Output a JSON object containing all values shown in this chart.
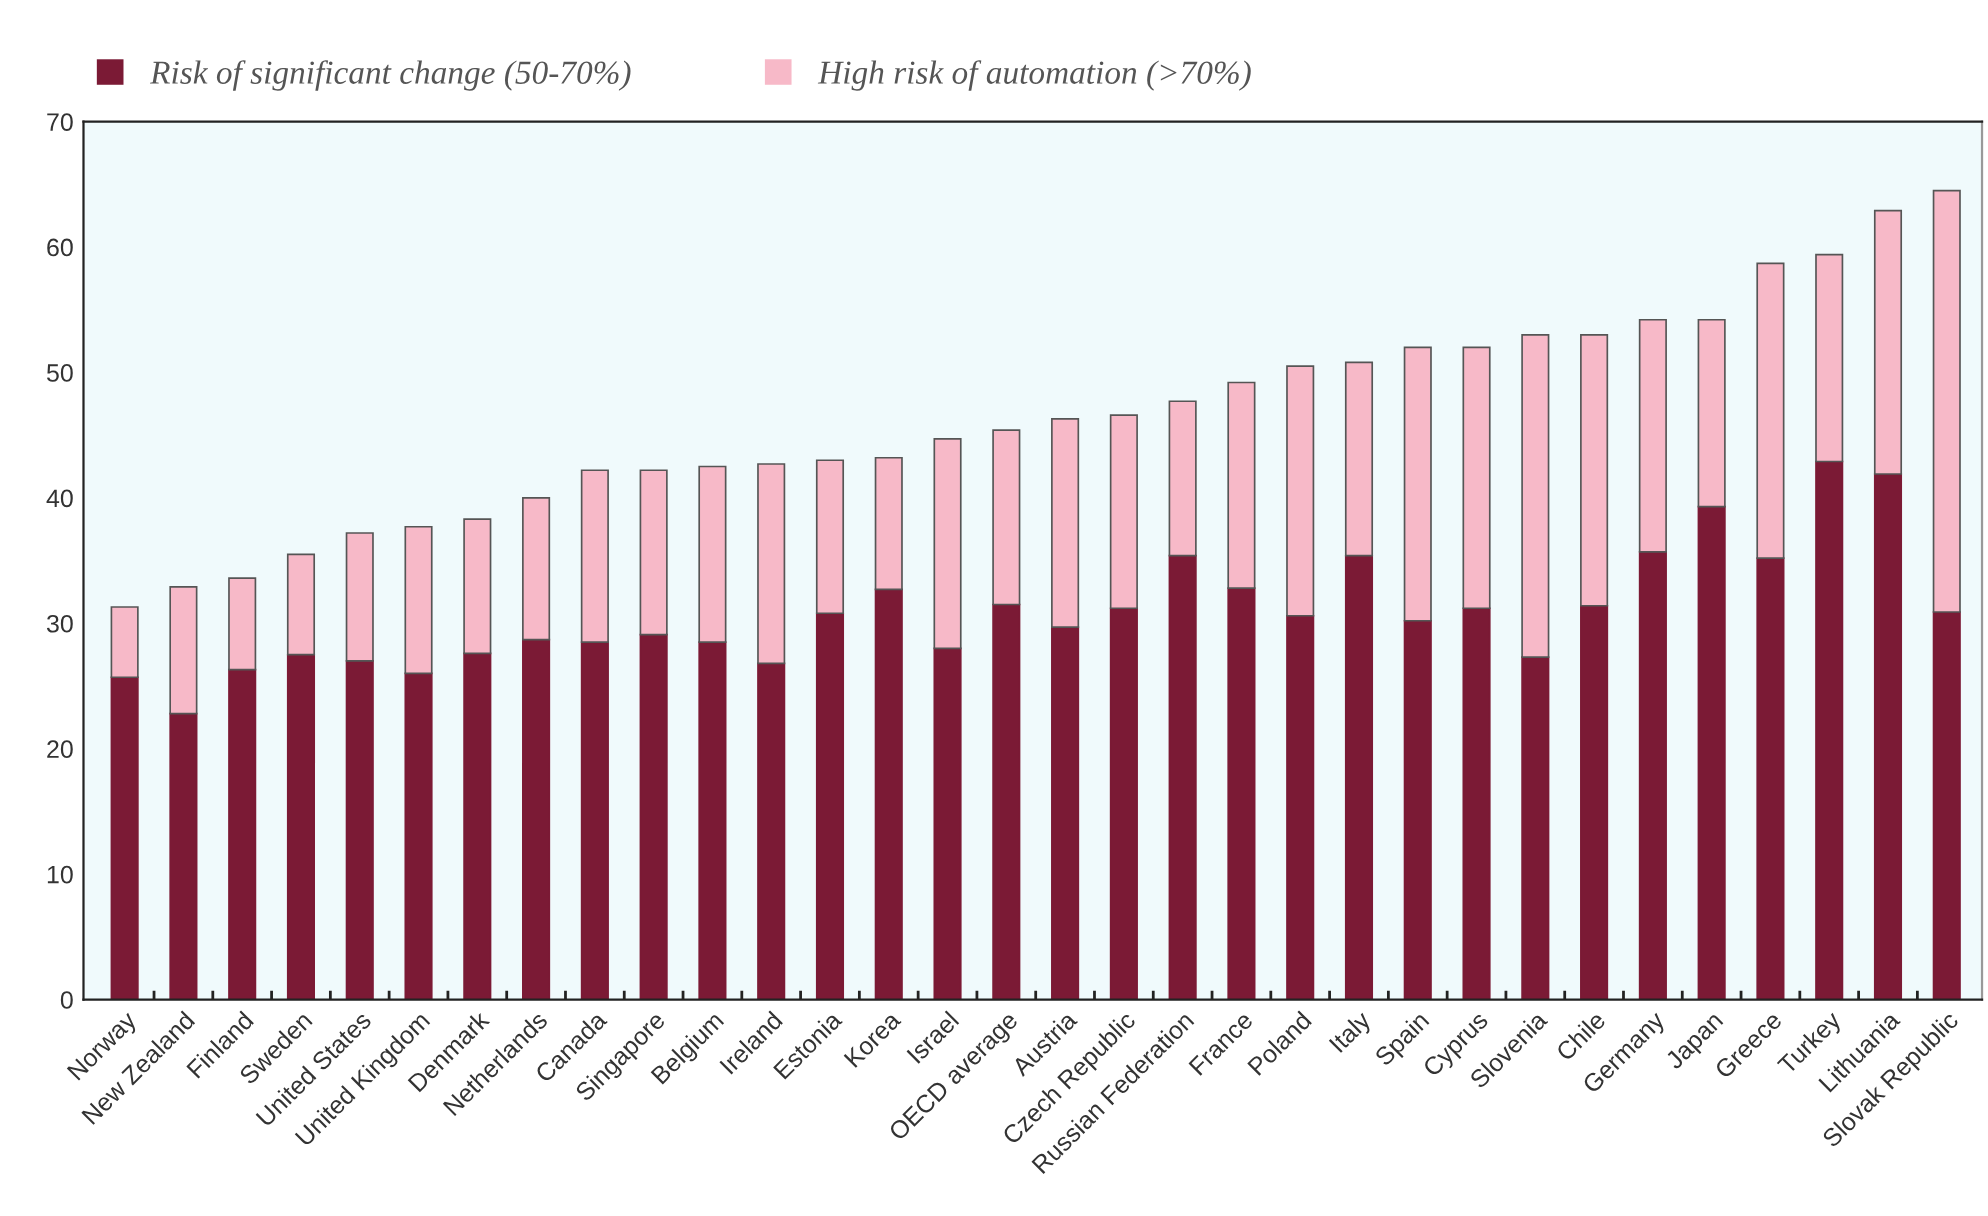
{
  "chart_data": {
    "type": "bar",
    "stacked": true,
    "categories": [
      "Norway",
      "New Zealand",
      "Finland",
      "Sweden",
      "United States",
      "United Kingdom",
      "Denmark",
      "Netherlands",
      "Canada",
      "Singapore",
      "Belgium",
      "Ireland",
      "Estonia",
      "Korea",
      "Israel",
      "OECD average",
      "Austria",
      "Czech Republic",
      "Russian Federation",
      "France",
      "Poland",
      "Italy",
      "Spain",
      "Cyprus",
      "Slovenia",
      "Chile",
      "Germany",
      "Japan",
      "Greece",
      "Turkey",
      "Lithuania",
      "Slovak Republic"
    ],
    "series": [
      {
        "name": "Risk of significant change (50-70%)",
        "color": "#7b1a35",
        "values": [
          25.7,
          22.8,
          26.3,
          27.5,
          27.0,
          26.0,
          27.6,
          28.7,
          28.5,
          29.1,
          28.5,
          26.8,
          30.8,
          32.7,
          28.0,
          31.5,
          29.7,
          31.2,
          35.4,
          32.8,
          30.6,
          35.4,
          30.2,
          31.2,
          27.3,
          31.4,
          35.7,
          39.3,
          35.2,
          42.9,
          41.9,
          30.9
        ]
      },
      {
        "name": "High risk of automation (>70%)",
        "color": "#f7b9c8",
        "values": [
          5.6,
          10.1,
          7.3,
          8.0,
          10.2,
          11.7,
          10.7,
          11.3,
          13.7,
          13.1,
          14.0,
          15.9,
          12.2,
          10.5,
          16.7,
          13.9,
          16.6,
          15.4,
          12.3,
          16.4,
          19.9,
          15.4,
          21.8,
          20.8,
          25.7,
          21.6,
          18.5,
          14.9,
          23.5,
          16.5,
          21.0,
          33.6
        ]
      }
    ],
    "ylim": [
      0,
      70
    ],
    "yticks": [
      0,
      10,
      20,
      30,
      40,
      50,
      60,
      70
    ],
    "grid": false,
    "legend": "top left"
  }
}
